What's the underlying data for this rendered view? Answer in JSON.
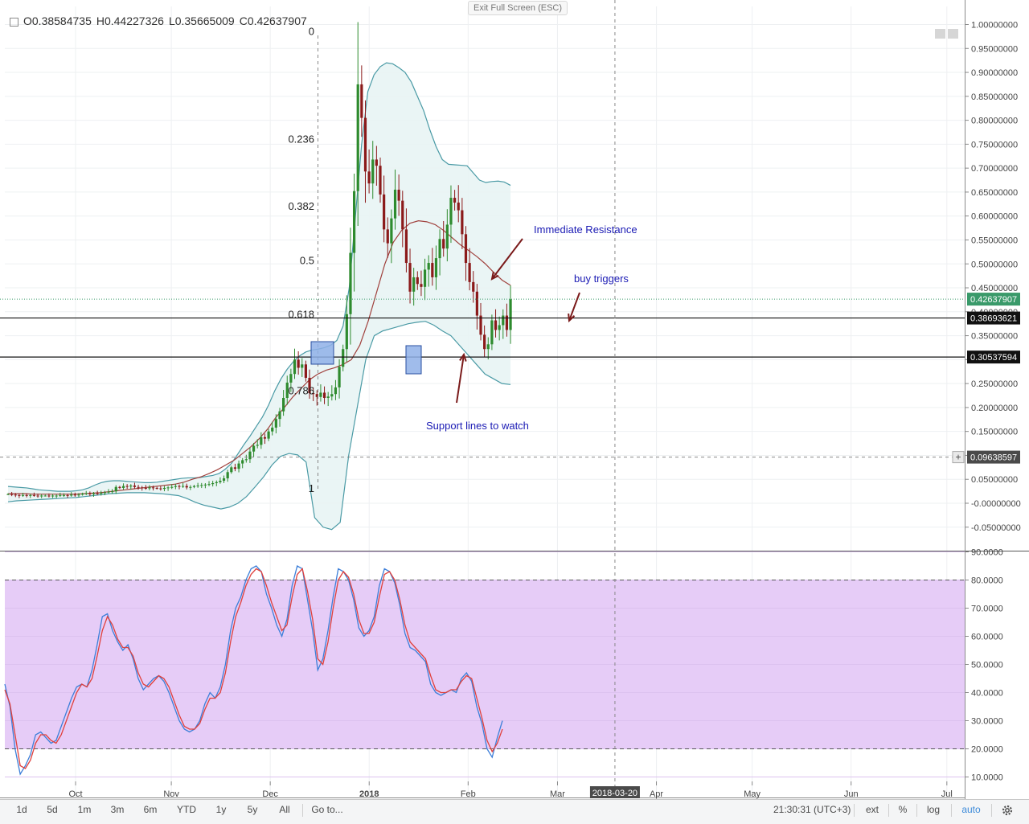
{
  "header": {
    "ohlc_open": "O0.38584735",
    "ohlc_high": "H0.44227326",
    "ohlc_low": "L0.35665009",
    "ohlc_close": "C0.42637907",
    "exit_fullscreen": "Exit Full Screen (ESC)"
  },
  "bottom_bar": {
    "ranges": [
      "1d",
      "5d",
      "1m",
      "3m",
      "6m",
      "YTD",
      "1y",
      "5y",
      "All"
    ],
    "goto": "Go to...",
    "time": "21:30:31 (UTC+3)",
    "ext": "ext",
    "percent": "%",
    "log": "log",
    "auto": "auto",
    "settings_icon": "gear-icon"
  },
  "colors": {
    "up_candle": "#2e8b2e",
    "down_candle": "#8b1a1a",
    "bollinger": "#4a9aa5",
    "bollinger_fill": "#e8f4f4",
    "ma": "#a0413d",
    "stoch_k": "#3d7fd9",
    "stoch_d": "#e0413d",
    "stoch_bg": "#e6ccf7",
    "annotation": "#1a1ab4",
    "arrow": "#7a1a1a",
    "support_box": "#8fb0e8"
  },
  "chart_data": [
    {
      "type": "candlestick",
      "title": "",
      "price_axis": {
        "ylim": [
          -0.075,
          1.02
        ],
        "ticks": [
          "1.00000000",
          "0.95000000",
          "0.90000000",
          "0.85000000",
          "0.80000000",
          "0.75000000",
          "0.70000000",
          "0.65000000",
          "0.60000000",
          "0.55000000",
          "0.50000000",
          "0.45000000",
          "0.40000000",
          "0.35000000",
          "0.30000000",
          "0.25000000",
          "0.20000000",
          "0.15000000",
          "0.10000000",
          "0.05000000",
          "-0.00000000",
          "-0.05000000"
        ],
        "tick_values": [
          1.0,
          0.95,
          0.9,
          0.85,
          0.8,
          0.75,
          0.7,
          0.65,
          0.6,
          0.55,
          0.5,
          0.45,
          0.4,
          0.35,
          0.3,
          0.25,
          0.2,
          0.15,
          0.1,
          0.05,
          0.0,
          -0.05
        ],
        "price_labels": [
          {
            "value": 0.42637907,
            "text": "0.42637907",
            "style": "current"
          },
          {
            "value": 0.38693621,
            "text": "0.38693621",
            "style": "line"
          },
          {
            "value": 0.30537594,
            "text": "0.30537594",
            "style": "line"
          },
          {
            "value": 0.09638597,
            "text": "0.09638597",
            "style": "cursor"
          }
        ]
      },
      "x_axis": {
        "labels": [
          "Oct",
          "Nov",
          "Dec",
          "2018",
          "Feb",
          "Mar",
          "Apr",
          "May",
          "Jun",
          "Jul"
        ],
        "label_days": [
          10,
          40,
          71,
          102,
          133,
          161,
          192,
          222,
          253,
          283
        ],
        "cursor_label": "2018-03-20",
        "cursor_day": 179
      },
      "fibonacci": [
        {
          "label": "0",
          "value": 0.985
        },
        {
          "label": "0.236",
          "value": 0.76
        },
        {
          "label": "0.382",
          "value": 0.62
        },
        {
          "label": "0.5",
          "value": 0.506
        },
        {
          "label": "0.618",
          "value": 0.394
        },
        {
          "label": "0.786",
          "value": 0.234
        },
        {
          "label": "1",
          "value": 0.03
        }
      ],
      "horizontal_lines": [
        0.38693621,
        0.30537594
      ],
      "candles_close": [
        0.019,
        0.018,
        0.017,
        0.016,
        0.017,
        0.016,
        0.017,
        0.016,
        0.015,
        0.016,
        0.016,
        0.015,
        0.016,
        0.016,
        0.017,
        0.017,
        0.016,
        0.018,
        0.017,
        0.018,
        0.02,
        0.021,
        0.019,
        0.021,
        0.02,
        0.022,
        0.023,
        0.024,
        0.025,
        0.034,
        0.032,
        0.036,
        0.035,
        0.037,
        0.034,
        0.033,
        0.032,
        0.031,
        0.033,
        0.032,
        0.031,
        0.03,
        0.032,
        0.033,
        0.034,
        0.036,
        0.035,
        0.036,
        0.033,
        0.034,
        0.036,
        0.037,
        0.038,
        0.039,
        0.04,
        0.042,
        0.044,
        0.047,
        0.052,
        0.065,
        0.075,
        0.072,
        0.083,
        0.09,
        0.092,
        0.108,
        0.12,
        0.122,
        0.138,
        0.135,
        0.15,
        0.158,
        0.176,
        0.192,
        0.22,
        0.252,
        0.27,
        0.3,
        0.283,
        0.29,
        0.262,
        0.23,
        0.228,
        0.222,
        0.231,
        0.22,
        0.223,
        0.228,
        0.242,
        0.285,
        0.322,
        0.395,
        0.523,
        0.652,
        0.875,
        0.805,
        0.693,
        0.668,
        0.718,
        0.705,
        0.645,
        0.572,
        0.543,
        0.595,
        0.655,
        0.632,
        0.572,
        0.502,
        0.442,
        0.472,
        0.458,
        0.452,
        0.488,
        0.502,
        0.472,
        0.512,
        0.552,
        0.532,
        0.582,
        0.638,
        0.628,
        0.612,
        0.562,
        0.502,
        0.462,
        0.442,
        0.392,
        0.352,
        0.322,
        0.332,
        0.382,
        0.362,
        0.372,
        0.392,
        0.362,
        0.426
      ],
      "bollinger_upper": [
        0.035,
        0.034,
        0.033,
        0.032,
        0.03,
        0.028,
        0.027,
        0.026,
        0.025,
        0.025,
        0.025,
        0.026,
        0.028,
        0.032,
        0.038,
        0.043,
        0.046,
        0.047,
        0.047,
        0.046,
        0.045,
        0.044,
        0.043,
        0.043,
        0.044,
        0.046,
        0.048,
        0.05,
        0.052,
        0.053,
        0.053,
        0.054,
        0.056,
        0.058,
        0.062,
        0.071,
        0.083,
        0.102,
        0.122,
        0.14,
        0.16,
        0.18,
        0.205,
        0.235,
        0.26,
        0.28,
        0.296,
        0.308,
        0.316,
        0.32,
        0.322,
        0.325,
        0.33,
        0.34,
        0.37,
        0.45,
        0.6,
        0.75,
        0.86,
        0.895,
        0.912,
        0.92,
        0.918,
        0.91,
        0.9,
        0.88,
        0.85,
        0.82,
        0.78,
        0.745,
        0.718,
        0.708,
        0.707,
        0.706,
        0.705,
        0.69,
        0.675,
        0.67,
        0.672,
        0.673,
        0.671,
        0.664
      ],
      "bollinger_lower": [
        0.003,
        0.005,
        0.006,
        0.007,
        0.008,
        0.009,
        0.01,
        0.011,
        0.012,
        0.014,
        0.016,
        0.018,
        0.02,
        0.021,
        0.022,
        0.022,
        0.022,
        0.021,
        0.02,
        0.018,
        0.016,
        0.01,
        0.002,
        -0.004,
        -0.008,
        -0.012,
        -0.008,
        0.0,
        0.014,
        0.034,
        0.055,
        0.08,
        0.098,
        0.104,
        0.101,
        0.086,
        -0.03,
        -0.05,
        -0.055,
        -0.04,
        0.1,
        0.2,
        0.3,
        0.35,
        0.36,
        0.365,
        0.37,
        0.375,
        0.378,
        0.38,
        0.372,
        0.36,
        0.35,
        0.33,
        0.31,
        0.29,
        0.27,
        0.26,
        0.25,
        0.248
      ],
      "moving_average": [
        0.02,
        0.02,
        0.02,
        0.019,
        0.019,
        0.019,
        0.019,
        0.019,
        0.019,
        0.02,
        0.021,
        0.022,
        0.024,
        0.026,
        0.028,
        0.03,
        0.032,
        0.034,
        0.036,
        0.038,
        0.04,
        0.044,
        0.05,
        0.055,
        0.062,
        0.07,
        0.08,
        0.09,
        0.104,
        0.118,
        0.135,
        0.155,
        0.18,
        0.2,
        0.222,
        0.24,
        0.258,
        0.27,
        0.278,
        0.283,
        0.29,
        0.3,
        0.33,
        0.38,
        0.44,
        0.5,
        0.545,
        0.57,
        0.585,
        0.59,
        0.588,
        0.582,
        0.57,
        0.555,
        0.54,
        0.528,
        0.515,
        0.5,
        0.482,
        0.466,
        0.455
      ]
    },
    {
      "type": "line",
      "title": "",
      "ylim": [
        6.5,
        91.5
      ],
      "ticks": [
        "90.0000",
        "80.0000",
        "70.0000",
        "60.0000",
        "50.0000",
        "40.0000",
        "30.0000",
        "20.0000",
        "10.0000"
      ],
      "tick_values": [
        90,
        80,
        70,
        60,
        50,
        40,
        30,
        20,
        10
      ],
      "band": [
        20,
        80
      ],
      "series": [
        {
          "values": [
            43,
            35,
            20,
            11,
            14,
            18,
            25,
            26,
            24,
            22,
            23,
            28,
            33,
            38,
            42,
            43,
            42,
            48,
            57,
            67,
            68,
            62,
            58,
            55,
            57,
            52,
            45,
            41,
            43,
            45,
            46,
            44,
            40,
            35,
            30,
            27,
            26,
            27,
            30,
            36,
            40,
            38,
            42,
            50,
            62,
            70,
            74,
            80,
            84,
            85,
            83,
            75,
            70,
            64,
            60,
            66,
            78,
            85,
            84,
            73,
            62,
            48,
            52,
            62,
            74,
            84,
            83,
            80,
            73,
            63,
            60,
            62,
            67,
            78,
            84,
            83,
            79,
            71,
            61,
            56,
            55,
            53,
            51,
            43,
            40,
            39,
            40,
            41,
            40,
            45,
            47,
            44,
            35,
            29,
            20,
            17,
            24,
            30
          ]
        },
        {
          "values": [
            41,
            36,
            25,
            14,
            13,
            16,
            22,
            25,
            25,
            23,
            22,
            25,
            30,
            35,
            40,
            43,
            42,
            45,
            53,
            62,
            67,
            64,
            59,
            56,
            56,
            53,
            47,
            43,
            42,
            44,
            46,
            45,
            42,
            37,
            32,
            28,
            27,
            27,
            29,
            34,
            38,
            38,
            40,
            47,
            58,
            67,
            72,
            78,
            82,
            84,
            83,
            78,
            72,
            67,
            62,
            64,
            74,
            82,
            84,
            76,
            66,
            52,
            50,
            58,
            70,
            80,
            83,
            81,
            75,
            66,
            61,
            61,
            65,
            74,
            82,
            83,
            80,
            73,
            64,
            58,
            56,
            54,
            52,
            46,
            41,
            40,
            40,
            41,
            41,
            44,
            46,
            45,
            38,
            31,
            23,
            19,
            22,
            27
          ]
        }
      ]
    }
  ],
  "annotations": {
    "immediate_resistance": "Immediate Resistance",
    "buy_triggers": "buy triggers",
    "support_lines": "Support lines to watch"
  }
}
